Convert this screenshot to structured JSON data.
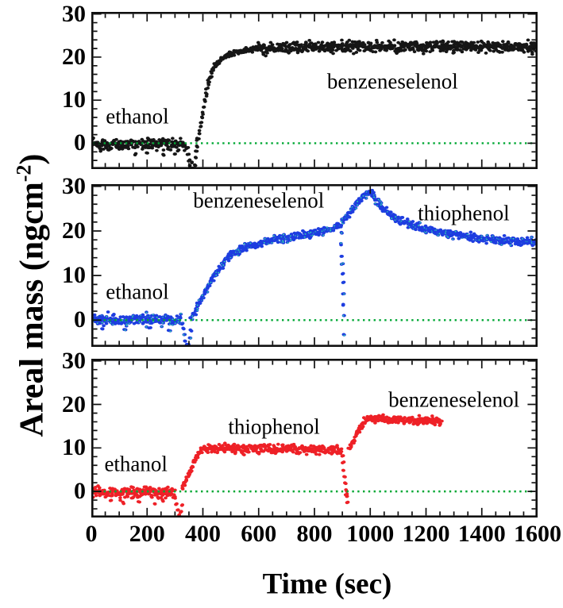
{
  "figure": {
    "background": "#ffffff",
    "x_axis": {
      "label": "Time (sec)",
      "ticks": [
        0,
        200,
        400,
        600,
        800,
        1000,
        1200,
        1400,
        1600
      ],
      "minor_step": 50,
      "range": [
        0,
        1600
      ]
    },
    "y_axis": {
      "label_prefix": "Areal mass (ngcm",
      "label_sup": "-2",
      "label_suffix": ")",
      "ticks": [
        0,
        10,
        20,
        30
      ],
      "minor_step": 2,
      "range": [
        -6,
        30.5
      ]
    },
    "zero_line_color": "#00a834",
    "frame_color": "#101010"
  },
  "chart_data": [
    {
      "type": "scatter",
      "panel": "top",
      "series_color_name": "black",
      "color": "#161616",
      "accent": null,
      "x_range": [
        0,
        1600
      ],
      "y_range": [
        -6,
        30.5
      ],
      "annotations": [
        {
          "text": "ethanol",
          "t": 165,
          "y": 6.2
        },
        {
          "text": "benzeneselenol",
          "t": 1080,
          "y": 14.2
        }
      ],
      "segments": [
        {
          "noise": 1.25,
          "pts": [
            [
              2,
              -0.3
            ],
            [
              335,
              -0.3
            ]
          ]
        },
        {
          "noise": 0.55,
          "pts": [
            [
              381,
              0.5
            ],
            [
              387,
              2.5
            ],
            [
              393,
              4.5
            ],
            [
              399,
              7
            ],
            [
              405,
              9.5
            ],
            [
              411,
              11.5
            ],
            [
              418,
              13.5
            ],
            [
              426,
              15.5
            ],
            [
              436,
              17.2
            ],
            [
              448,
              18.4
            ],
            [
              462,
              19.3
            ],
            [
              480,
              20.1
            ],
            [
              505,
              20.8
            ],
            [
              540,
              21.4
            ],
            [
              590,
              21.9
            ]
          ]
        },
        {
          "noise": 1.25,
          "pts": [
            [
              590,
              21.9
            ],
            [
              700,
              22.2
            ],
            [
              900,
              22.4
            ],
            [
              1200,
              22.5
            ],
            [
              1598,
              22.4
            ]
          ]
        }
      ],
      "extra_points": [
        [
          344,
          -1.2
        ],
        [
          348,
          -2.6
        ],
        [
          352,
          -4
        ],
        [
          355,
          -5.2
        ],
        [
          358,
          -6
        ],
        [
          361,
          -4.6
        ],
        [
          364,
          -5.8
        ],
        [
          367,
          -6.4
        ],
        [
          370,
          -5
        ],
        [
          373,
          -3.4
        ],
        [
          376,
          -2
        ],
        [
          379,
          -0.8
        ],
        [
          357,
          -6.6
        ],
        [
          366,
          -6.8
        ],
        [
          371,
          -6.2
        ],
        [
          160,
          -2.6
        ],
        [
          200,
          -2.4
        ],
        [
          260,
          -2.8
        ],
        [
          300,
          -2.5
        ]
      ]
    },
    {
      "type": "scatter",
      "panel": "middle",
      "series_color_name": "blue",
      "color": "#1e3de0",
      "accent": "#2ed8ac",
      "x_range": [
        0,
        1600
      ],
      "y_range": [
        -6,
        30.5
      ],
      "annotations": [
        {
          "text": "ethanol",
          "t": 165,
          "y": 6.2
        },
        {
          "text": "benzeneselenol",
          "t": 600,
          "y": 26.8
        },
        {
          "text": "thiophenol",
          "t": 1335,
          "y": 24.0
        }
      ],
      "segments": [
        {
          "noise": 1.2,
          "pts": [
            [
              2,
              0.2
            ],
            [
              322,
              0.2
            ]
          ]
        },
        {
          "noise": 0.8,
          "pts": [
            [
              356,
              0.5
            ],
            [
              372,
              2
            ],
            [
              388,
              3.8
            ],
            [
              404,
              5.6
            ],
            [
              420,
              7.6
            ],
            [
              436,
              9.4
            ],
            [
              452,
              11
            ],
            [
              470,
              12.6
            ],
            [
              490,
              14.1
            ],
            [
              515,
              15.3
            ],
            [
              545,
              16.2
            ],
            [
              585,
              17
            ],
            [
              635,
              17.7
            ],
            [
              695,
              18.4
            ],
            [
              755,
              19
            ],
            [
              815,
              19.7
            ],
            [
              860,
              20.3
            ],
            [
              893,
              21.2
            ]
          ]
        },
        {
          "noise": 0.8,
          "pts": [
            [
              898,
              21.8
            ],
            [
              912,
              23
            ],
            [
              928,
              24.2
            ],
            [
              946,
              25.6
            ],
            [
              964,
              27
            ],
            [
              980,
              28.1
            ],
            [
              995,
              28.9
            ],
            [
              1005,
              28.7
            ],
            [
              1018,
              27.3
            ],
            [
              1032,
              26
            ],
            [
              1048,
              24.9
            ],
            [
              1068,
              23.8
            ],
            [
              1092,
              22.8
            ],
            [
              1120,
              22
            ],
            [
              1155,
              21.2
            ],
            [
              1200,
              20.4
            ],
            [
              1255,
              19.7
            ],
            [
              1320,
              19
            ],
            [
              1390,
              18.4
            ],
            [
              1470,
              17.9
            ],
            [
              1598,
              17.5
            ]
          ]
        }
      ],
      "extra_points": [
        [
          326,
          -0.8
        ],
        [
          330,
          -2
        ],
        [
          334,
          -3.4
        ],
        [
          338,
          -4.8
        ],
        [
          342,
          -6
        ],
        [
          346,
          -6.6
        ],
        [
          350,
          -5.6
        ],
        [
          354,
          -4
        ],
        [
          358,
          -2.4
        ],
        [
          336,
          -6.2
        ],
        [
          344,
          -5.4
        ],
        [
          348,
          -6.9
        ],
        [
          897,
          19.5
        ],
        [
          898,
          17
        ],
        [
          899,
          14.5
        ],
        [
          900,
          12.5
        ],
        [
          901,
          10.5
        ],
        [
          902,
          8.5
        ],
        [
          903,
          6
        ],
        [
          904,
          3.5
        ],
        [
          905,
          1
        ],
        [
          906,
          -3.2
        ],
        [
          40,
          -1.8
        ],
        [
          120,
          -2.1
        ],
        [
          210,
          -1.9
        ],
        [
          280,
          -2.2
        ]
      ]
    },
    {
      "type": "scatter",
      "panel": "bottom",
      "series_color_name": "red",
      "color": "#ee2127",
      "accent": null,
      "x_range": [
        0,
        1600
      ],
      "y_range": [
        -6,
        30.5
      ],
      "annotations": [
        {
          "text": "ethanol",
          "t": 160,
          "y": 6.2
        },
        {
          "text": "thiophenol",
          "t": 655,
          "y": 14.8
        },
        {
          "text": "benzeneselenol",
          "t": 1300,
          "y": 21.0
        }
      ],
      "segments": [
        {
          "noise": 1.25,
          "pts": [
            [
              2,
              -0.2
            ],
            [
              298,
              -0.2
            ]
          ]
        },
        {
          "noise": 0.7,
          "pts": [
            [
              326,
              0.5
            ],
            [
              334,
              1.6
            ],
            [
              342,
              2.8
            ],
            [
              351,
              4.1
            ],
            [
              360,
              5.4
            ],
            [
              370,
              6.7
            ],
            [
              381,
              8
            ],
            [
              392,
              9.2
            ],
            [
              403,
              9.9
            ]
          ]
        },
        {
          "noise": 1.0,
          "pts": [
            [
              403,
              10
            ],
            [
              470,
              10
            ],
            [
              560,
              9.7
            ],
            [
              660,
              9.8
            ],
            [
              760,
              9.6
            ],
            [
              830,
              9.7
            ],
            [
              896,
              9.5
            ]
          ]
        },
        {
          "noise": 0.65,
          "pts": [
            [
              925,
              9.9
            ],
            [
              936,
              11
            ],
            [
              947,
              12.4
            ],
            [
              958,
              13.8
            ],
            [
              969,
              15.1
            ],
            [
              980,
              16.1
            ],
            [
              993,
              16.7
            ],
            [
              1006,
              16.9
            ]
          ]
        },
        {
          "noise": 0.85,
          "pts": [
            [
              1006,
              16.8
            ],
            [
              1060,
              16.4
            ],
            [
              1130,
              16.3
            ],
            [
              1200,
              16.2
            ],
            [
              1256,
              16.1
            ]
          ]
        }
      ],
      "extra_points": [
        [
          302,
          -1.4
        ],
        [
          306,
          -2.8
        ],
        [
          310,
          -4.2
        ],
        [
          314,
          -5.6
        ],
        [
          318,
          -6.4
        ],
        [
          322,
          -4.8
        ],
        [
          326,
          -3
        ],
        [
          312,
          -6.8
        ],
        [
          316,
          -7
        ],
        [
          320,
          -6
        ],
        [
          900,
          8.2
        ],
        [
          903,
          6.6
        ],
        [
          906,
          5
        ],
        [
          909,
          3.4
        ],
        [
          912,
          1.8
        ],
        [
          915,
          0.2
        ],
        [
          918,
          -1.2
        ],
        [
          920,
          -2.6
        ],
        [
          914,
          -0.6
        ],
        [
          70,
          -2.2
        ],
        [
          115,
          -2.6
        ],
        [
          170,
          -2.3
        ],
        [
          225,
          -2.8
        ],
        [
          255,
          -2.1
        ]
      ]
    }
  ]
}
